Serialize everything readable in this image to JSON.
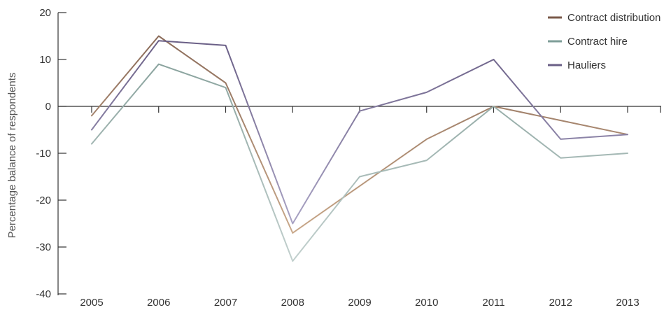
{
  "chart_data": {
    "type": "line",
    "title": "",
    "xlabel": "",
    "ylabel": "Percentage balance of respondents",
    "ylim": [
      -40,
      20
    ],
    "yticks": [
      20,
      10,
      0,
      -10,
      -20,
      -30,
      -40
    ],
    "x": [
      "2005",
      "2006",
      "2007",
      "2008",
      "2009",
      "2010",
      "2011",
      "2012",
      "2013"
    ],
    "legend_position": "top-right",
    "grid": false,
    "series": [
      {
        "name": "Contract distribution",
        "legend_color": "#7a5a4a",
        "colors": [
          "#8a6a58",
          "#c9a88a"
        ],
        "values": [
          -2,
          15,
          5,
          -27,
          -17,
          -7,
          0,
          -3,
          -6
        ]
      },
      {
        "name": "Contract hire",
        "legend_color": "#7e9e98",
        "colors": [
          "#8aa39e",
          "#c2d0ce"
        ],
        "values": [
          -8,
          9,
          4,
          -33,
          -15,
          -11.5,
          0,
          -11,
          -10
        ]
      },
      {
        "name": "Hauliers",
        "legend_color": "#6a5f86",
        "colors": [
          "#6a5f86",
          "#a9a3c4"
        ],
        "values": [
          -5,
          14,
          13,
          -25,
          -1,
          3,
          10,
          -7,
          -6
        ]
      }
    ]
  }
}
